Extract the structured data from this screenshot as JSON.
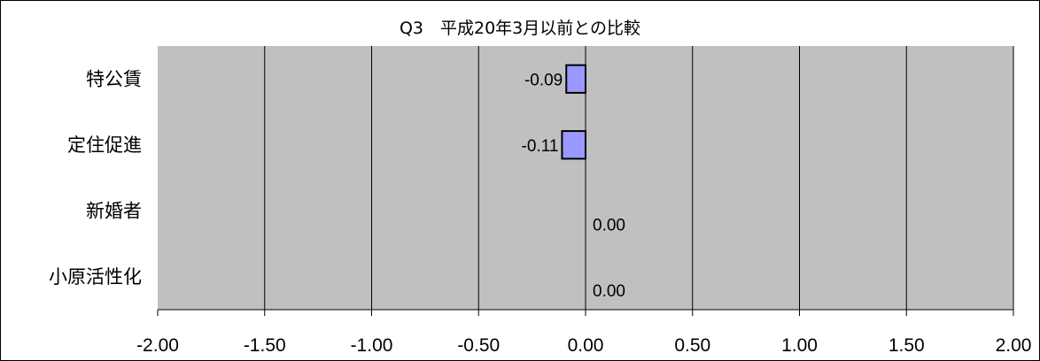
{
  "chart_data": {
    "type": "bar",
    "orientation": "horizontal",
    "title": "Q3　平成20年3月以前との比較",
    "categories": [
      "特公賃",
      "定住促進",
      "新婚者",
      "小原活性化"
    ],
    "values": [
      -0.09,
      -0.11,
      0.0,
      0.0
    ],
    "value_labels": [
      "-0.09",
      "-0.11",
      "0.00",
      "0.00"
    ],
    "xlim": [
      -2.0,
      2.0
    ],
    "xticks": [
      -2.0,
      -1.5,
      -1.0,
      -0.5,
      0.0,
      0.5,
      1.0,
      1.5,
      2.0
    ],
    "xtick_labels": [
      "-2.00",
      "-1.50",
      "-1.00",
      "-0.50",
      "0.00",
      "0.50",
      "1.00",
      "1.50",
      "2.00"
    ],
    "xlabel": "",
    "ylabel": "",
    "grid": true,
    "colors": {
      "plot_background": "#c0c0c0",
      "bar_fill": "#9999ff",
      "bar_stroke": "#000000",
      "gridline": "#000000"
    }
  }
}
